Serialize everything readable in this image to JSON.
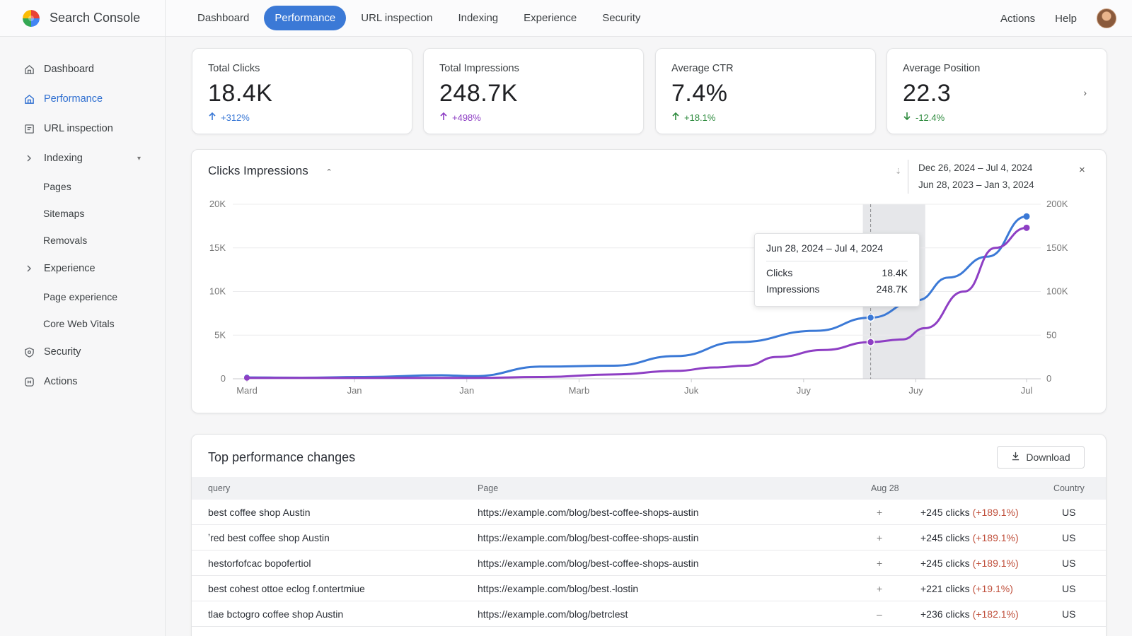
{
  "app": {
    "name": "Search Console"
  },
  "topnav": {
    "tabs": [
      "Dashboard",
      "Performance",
      "URL inspection",
      "Indexing",
      "Experience",
      "Security"
    ],
    "active": "Performance",
    "right": [
      "Actions",
      "Help"
    ]
  },
  "sidebar": {
    "items": [
      {
        "label": "Dashboard",
        "icon": "dashboard-icon"
      },
      {
        "label": "Performance",
        "icon": "home-icon",
        "active": true
      },
      {
        "label": "URL inspection",
        "icon": "url-inspect-icon"
      },
      {
        "label": "Indexing",
        "icon": "chevron-right-icon",
        "expandable": true
      },
      {
        "label": "Pages",
        "sub": true
      },
      {
        "label": "Sitemaps",
        "sub": true
      },
      {
        "label": "Removals",
        "sub": true
      },
      {
        "label": "Experience",
        "icon": "chevron-right-icon",
        "expandable": true
      },
      {
        "label": "Page experience",
        "sub": true
      },
      {
        "label": "Core Web Vitals",
        "sub": true
      },
      {
        "label": "Security",
        "icon": "shield-gear-icon"
      },
      {
        "label": "Actions",
        "icon": "actions-icon"
      }
    ]
  },
  "stats": [
    {
      "label": "Total Clicks",
      "value": "18.4K",
      "delta": "+312%",
      "dir": "up",
      "color": "#3b79d6"
    },
    {
      "label": "Total Impressions",
      "value": "248.7K",
      "delta": "+498%",
      "dir": "up",
      "color": "#8e3fc4"
    },
    {
      "label": "Average CTR",
      "value": "7.4%",
      "delta": "+18.1%",
      "dir": "up",
      "color": "#2e8b3e"
    },
    {
      "label": "Average Position",
      "value": "22.3",
      "delta": "-12.4%",
      "dir": "down",
      "color": "#2e8b3e"
    }
  ],
  "chart_card": {
    "title": "Clicks Impressions",
    "date_range_1": "Dec 26, 2024  –  Jul 4, 2024",
    "date_range_2": "Jun 28, 2023  –  Jan 3, 2024"
  },
  "tooltip": {
    "date": "Jun 28, 2024 – Jul 4, 2024",
    "clicks_label": "Clicks",
    "clicks_value": "18.4K",
    "impressions_label": "Impressions",
    "impressions_value": "248.7K"
  },
  "chart_data": {
    "type": "line",
    "x_tick_labels": [
      "Mard",
      "Jan",
      "Jan",
      "Marb",
      "Juk",
      "Juy",
      "Juy",
      "Jul"
    ],
    "y_left_ticks": [
      "0",
      "5K",
      "10K",
      "15K",
      "20K"
    ],
    "y_right_ticks": [
      "0",
      "50",
      "100K",
      "150K",
      "200K"
    ],
    "ylim_left": [
      0,
      20000
    ],
    "ylim_right": [
      0,
      200000
    ],
    "grid": true,
    "highlight_band_x": [
      0.79,
      0.87
    ],
    "hover_x": 0.8,
    "series": [
      {
        "name": "Clicks",
        "axis": "left",
        "color": "#3b79d6",
        "points": [
          [
            0,
            150
          ],
          [
            0.07,
            120
          ],
          [
            0.15,
            200
          ],
          [
            0.25,
            400
          ],
          [
            0.29,
            300
          ],
          [
            0.38,
            1400
          ],
          [
            0.47,
            1500
          ],
          [
            0.55,
            2600
          ],
          [
            0.63,
            4200
          ],
          [
            0.73,
            5500
          ],
          [
            0.8,
            7000
          ],
          [
            0.86,
            9000
          ],
          [
            0.9,
            11600
          ],
          [
            0.95,
            14000
          ],
          [
            1,
            18600
          ]
        ]
      },
      {
        "name": "Impressions",
        "axis": "right",
        "color": "#8e3fc4",
        "points": [
          [
            0,
            1000
          ],
          [
            0.15,
            1000
          ],
          [
            0.29,
            1000
          ],
          [
            0.38,
            2000
          ],
          [
            0.47,
            5000
          ],
          [
            0.55,
            9000
          ],
          [
            0.6,
            13000
          ],
          [
            0.64,
            15000
          ],
          [
            0.68,
            25000
          ],
          [
            0.74,
            33000
          ],
          [
            0.8,
            42000
          ],
          [
            0.84,
            45000
          ],
          [
            0.87,
            58000
          ],
          [
            0.92,
            100000
          ],
          [
            0.96,
            150000
          ],
          [
            1,
            173000
          ]
        ]
      }
    ]
  },
  "table": {
    "title": "Top performance changes",
    "download_label": "Download",
    "headers": {
      "query": "query",
      "page": "Page",
      "date": "Aug 28",
      "country": "Country"
    },
    "rows": [
      {
        "query": "best coffee shop Austin",
        "page": "https://example.com/blog/best-coffee-shops-austin",
        "mark": "+",
        "clicks": "+245 clicks",
        "pct": "(+189.1%)",
        "country": "US"
      },
      {
        "query": "ʼred best coffee shop Austin",
        "page": "https://example.com/blog/best-coffee-shops-austin",
        "mark": "+",
        "clicks": "+245 clicks",
        "pct": "(+189.1%)",
        "country": "US"
      },
      {
        "query": "hestorfofcac bopofertiol",
        "page": "https://example.com/blog/best-coffee-shops-austin",
        "mark": "+",
        "clicks": "+245 clicks",
        "pct": "(+189.1%)",
        "country": "US"
      },
      {
        "query": "best cohest ottoe eclog f.ontertmiue",
        "page": "https://example.com/blog/best.-lostin",
        "mark": "+",
        "clicks": "+221 clicks",
        "pct": "(+19.1%)",
        "country": "US"
      },
      {
        "query": "tlae bctogro coffee shop Austin",
        "page": "https://example.com/blog/betrclest",
        "mark": "–",
        "clicks": "+236 clicks",
        "pct": "(+182.1%)",
        "country": "US"
      }
    ]
  }
}
